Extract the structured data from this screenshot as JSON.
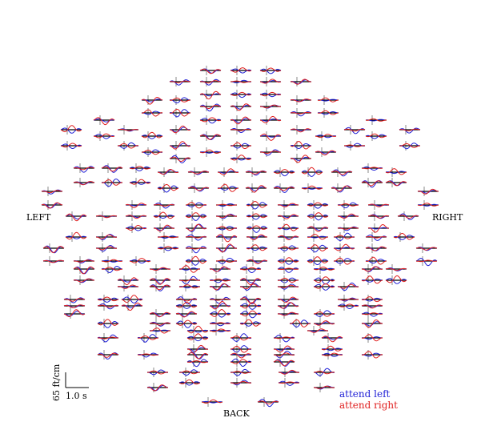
{
  "chart_data": {
    "type": "line",
    "title": "",
    "orientation_labels": {
      "left": "LEFT",
      "right": "RIGHT",
      "back": "BACK"
    },
    "scale_bar": {
      "amplitude_label": "65 ft/cm",
      "time_label": "1.0 s"
    },
    "series": [
      {
        "name": "attend left",
        "color": "#1f1fd6"
      },
      {
        "name": "attend right",
        "color": "#e02020"
      }
    ],
    "axis_color": "#000000",
    "sensor_count": 220
  }
}
